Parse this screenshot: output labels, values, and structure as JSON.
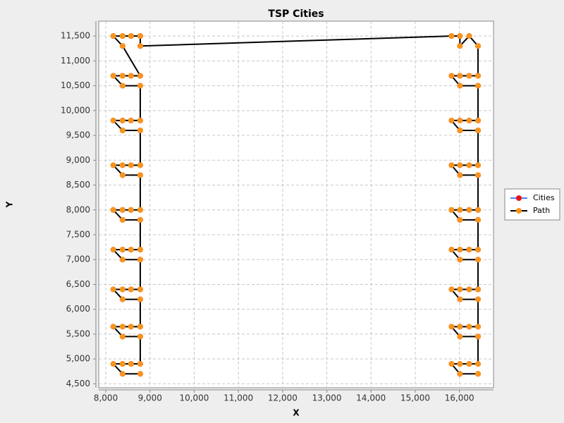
{
  "chart_data": {
    "type": "scatter-path",
    "title": "TSP Cities",
    "x_label": "X",
    "y_label": "Y",
    "xlim": [
      7840,
      16770
    ],
    "ylim": [
      4420,
      11800
    ],
    "xticks": [
      {
        "value": 8000,
        "label": "8,000"
      },
      {
        "value": 9000,
        "label": "9,000"
      },
      {
        "value": 10000,
        "label": "10,000"
      },
      {
        "value": 11000,
        "label": "11,000"
      },
      {
        "value": 12000,
        "label": "12,000"
      },
      {
        "value": 13000,
        "label": "13,000"
      },
      {
        "value": 14000,
        "label": "14,000"
      },
      {
        "value": 15000,
        "label": "15,000"
      },
      {
        "value": 16000,
        "label": "16,000"
      }
    ],
    "yticks": [
      {
        "value": 4500,
        "label": "4,500"
      },
      {
        "value": 5000,
        "label": "5,000"
      },
      {
        "value": 5500,
        "label": "5,500"
      },
      {
        "value": 6000,
        "label": "6,000"
      },
      {
        "value": 6500,
        "label": "6,500"
      },
      {
        "value": 7000,
        "label": "7,000"
      },
      {
        "value": 7500,
        "label": "7,500"
      },
      {
        "value": 8000,
        "label": "8,000"
      },
      {
        "value": 8500,
        "label": "8,500"
      },
      {
        "value": 9000,
        "label": "9,000"
      },
      {
        "value": 9500,
        "label": "9,500"
      },
      {
        "value": 10000,
        "label": "10,000"
      },
      {
        "value": 10500,
        "label": "10,500"
      },
      {
        "value": 11000,
        "label": "11,000"
      },
      {
        "value": 11500,
        "label": "11,500"
      }
    ],
    "grid": true,
    "legend": "right",
    "series": [
      {
        "name": "Cities",
        "color": "#e8141b",
        "legend_line_color": "#4f7fff",
        "line": false,
        "x": [
          8780,
          8380,
          8170,
          8380,
          8570,
          8780,
          8780,
          8380,
          8170,
          8380,
          8570,
          8780,
          8780,
          8380,
          8170,
          8380,
          8570,
          8780,
          8780,
          8380,
          8170,
          8380,
          8570,
          8780,
          8780,
          8380,
          8170,
          8380,
          8570,
          8780,
          8780,
          8380,
          8170,
          8380,
          8570,
          8780,
          8780,
          8380,
          8170,
          8380,
          8570,
          8780,
          8780,
          8380,
          8170,
          8380,
          8570,
          8780,
          8380,
          8170,
          8380,
          8570,
          8780,
          8780,
          15820,
          16010,
          16010,
          16220,
          16420,
          16420,
          16220,
          16010,
          15820,
          16010,
          16420,
          16420,
          16220,
          16010,
          15820,
          16010,
          16420,
          16420,
          16220,
          16010,
          15820,
          16010,
          16420,
          16420,
          16220,
          16010,
          15820,
          16010,
          16420,
          16420,
          16220,
          16010,
          15820,
          16010,
          16420,
          16420,
          16220,
          16010,
          15820,
          16010,
          16420,
          16420,
          16220,
          16010,
          15820,
          16010,
          16420,
          16420,
          16220,
          16010,
          15820,
          16010,
          16420
        ],
        "y": [
          4700,
          4700,
          4900,
          4900,
          4900,
          4900,
          5450,
          5450,
          5650,
          5650,
          5650,
          5650,
          6200,
          6200,
          6400,
          6400,
          6400,
          6400,
          7000,
          7000,
          7200,
          7200,
          7200,
          7200,
          7800,
          7800,
          8000,
          8000,
          8000,
          8000,
          8700,
          8700,
          8900,
          8900,
          8900,
          8900,
          9600,
          9600,
          9800,
          9800,
          9800,
          9800,
          10500,
          10500,
          10700,
          10700,
          10700,
          10700,
          11300,
          11500,
          11500,
          11500,
          11500,
          11300,
          11500,
          11500,
          11300,
          11500,
          11300,
          10700,
          10700,
          10700,
          10700,
          10500,
          10500,
          9800,
          9800,
          9800,
          9800,
          9600,
          9600,
          8900,
          8900,
          8900,
          8900,
          8700,
          8700,
          8000,
          8000,
          8000,
          8000,
          7800,
          7800,
          7200,
          7200,
          7200,
          7200,
          7000,
          7000,
          6400,
          6400,
          6400,
          6400,
          6200,
          6200,
          5650,
          5650,
          5650,
          5650,
          5450,
          5450,
          4900,
          4900,
          4900,
          4900,
          4700,
          4700
        ]
      },
      {
        "name": "Path",
        "color": "#000000",
        "marker_color": "#f7941d",
        "line": true,
        "x": [
          8780,
          8380,
          8170,
          8380,
          8570,
          8780,
          8780,
          8380,
          8170,
          8380,
          8570,
          8780,
          8780,
          8380,
          8170,
          8380,
          8570,
          8780,
          8780,
          8380,
          8170,
          8380,
          8570,
          8780,
          8780,
          8380,
          8170,
          8380,
          8570,
          8780,
          8780,
          8380,
          8170,
          8380,
          8570,
          8780,
          8780,
          8380,
          8170,
          8380,
          8570,
          8780,
          8780,
          8380,
          8170,
          8380,
          8570,
          8780,
          8380,
          8170,
          8380,
          8570,
          8780,
          8780,
          15820,
          16010,
          16010,
          16220,
          16420,
          16420,
          16220,
          16010,
          15820,
          16010,
          16420,
          16420,
          16220,
          16010,
          15820,
          16010,
          16420,
          16420,
          16220,
          16010,
          15820,
          16010,
          16420,
          16420,
          16220,
          16010,
          15820,
          16010,
          16420,
          16420,
          16220,
          16010,
          15820,
          16010,
          16420,
          16420,
          16220,
          16010,
          15820,
          16010,
          16420,
          16420,
          16220,
          16010,
          15820,
          16010,
          16420,
          16420,
          16220,
          16010,
          15820,
          16010,
          16420
        ],
        "y": [
          4700,
          4700,
          4900,
          4900,
          4900,
          4900,
          5450,
          5450,
          5650,
          5650,
          5650,
          5650,
          6200,
          6200,
          6400,
          6400,
          6400,
          6400,
          7000,
          7000,
          7200,
          7200,
          7200,
          7200,
          7800,
          7800,
          8000,
          8000,
          8000,
          8000,
          8700,
          8700,
          8900,
          8900,
          8900,
          8900,
          9600,
          9600,
          9800,
          9800,
          9800,
          9800,
          10500,
          10500,
          10700,
          10700,
          10700,
          10700,
          11300,
          11500,
          11500,
          11500,
          11500,
          11300,
          11500,
          11500,
          11300,
          11500,
          11300,
          10700,
          10700,
          10700,
          10700,
          10500,
          10500,
          9800,
          9800,
          9800,
          9800,
          9600,
          9600,
          8900,
          8900,
          8900,
          8900,
          8700,
          8700,
          8000,
          8000,
          8000,
          8000,
          7800,
          7800,
          7200,
          7200,
          7200,
          7200,
          7000,
          7000,
          6400,
          6400,
          6400,
          6400,
          6200,
          6200,
          5650,
          5650,
          5650,
          5650,
          5450,
          5450,
          4900,
          4900,
          4900,
          4900,
          4700,
          4700
        ]
      }
    ]
  }
}
